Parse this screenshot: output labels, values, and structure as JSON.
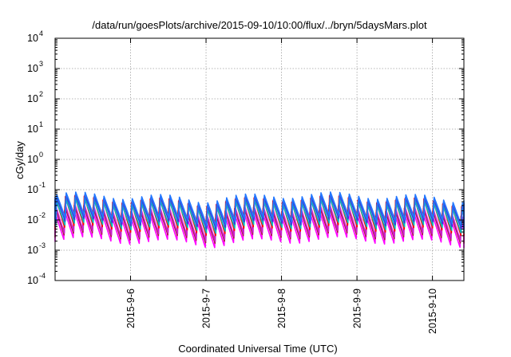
{
  "chart_data": {
    "type": "line",
    "title": "/data/run/goesPlots/archive/2015-09-10/10:00/flux/../bryn/5daysMars.plot",
    "xlabel": "Coordinated Universal Time (UTC)",
    "ylabel": "cGy/day",
    "x_type": "date",
    "xlim": [
      "2015-09-05T00:00",
      "2015-09-10T10:00"
    ],
    "x_ticks": [
      "2015-9-6",
      "2015-9-7",
      "2015-9-8",
      "2015-9-9",
      "2015-9-10"
    ],
    "y_scale": "log",
    "ylim": [
      0.0001,
      10000
    ],
    "y_ticks": [
      {
        "base": "10",
        "exp": "-4"
      },
      {
        "base": "10",
        "exp": "-3"
      },
      {
        "base": "10",
        "exp": "-2"
      },
      {
        "base": "10",
        "exp": "-1"
      },
      {
        "base": "10",
        "exp": "0"
      },
      {
        "base": "10",
        "exp": "1"
      },
      {
        "base": "10",
        "exp": "2"
      },
      {
        "base": "10",
        "exp": "3"
      },
      {
        "base": "10",
        "exp": "4"
      }
    ],
    "grid": true,
    "cycle_hours": 3,
    "series": [
      {
        "color": "#ff00ff",
        "peak": 0.016,
        "trough": 0.002
      },
      {
        "color": "#aa1144",
        "peak": 0.022,
        "trough": 0.0028
      },
      {
        "color": "#cc22cc",
        "peak": 0.026,
        "trough": 0.0032
      },
      {
        "color": "#ff0000",
        "peak": 0.045,
        "trough": 0.005
      },
      {
        "color": "#00bbbb",
        "peak": 0.04,
        "trough": 0.006
      },
      {
        "color": "#3344dd",
        "peak": 0.05,
        "trough": 0.008
      },
      {
        "color": "#2277ff",
        "peak": 0.06,
        "trough": 0.01
      }
    ]
  }
}
